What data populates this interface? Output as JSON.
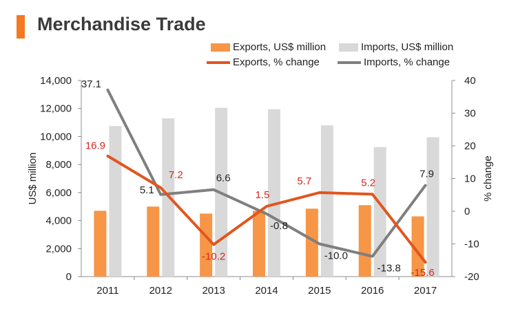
{
  "title": "Merchandise Trade",
  "colors": {
    "accent": "#f47920",
    "exports_bar": "#f79646",
    "imports_bar": "#d9d9d9",
    "exports_line": "#e2551e",
    "imports_line": "#7f7f7f",
    "exports_label": "#d9261c",
    "imports_label": "#222222"
  },
  "legend": {
    "exports_bar": "Exports, US$ million",
    "imports_bar": "Imports, US$ million",
    "exports_line": "Exports, % change",
    "imports_line": "Imports, % change"
  },
  "chart_data": {
    "type": "bar",
    "categories": [
      "2011",
      "2012",
      "2013",
      "2014",
      "2015",
      "2016",
      "2017"
    ],
    "series": [
      {
        "name": "Exports, US$ million",
        "type": "bar",
        "axis": "left",
        "values": [
          4700,
          5000,
          4500,
          4700,
          4850,
          5100,
          4300
        ]
      },
      {
        "name": "Imports, US$ million",
        "type": "bar",
        "axis": "left",
        "values": [
          10750,
          11300,
          12050,
          11950,
          10800,
          9250,
          9950
        ]
      },
      {
        "name": "Exports, % change",
        "type": "line",
        "axis": "right",
        "values": [
          16.9,
          7.2,
          -10.2,
          1.5,
          5.7,
          5.2,
          -15.6
        ],
        "labels": [
          "16.9",
          "7.2",
          "-10.2",
          "1.5",
          "5.7",
          "5.2",
          "-15.6"
        ]
      },
      {
        "name": "Imports, % change",
        "type": "line",
        "axis": "right",
        "values": [
          37.1,
          5.1,
          6.6,
          -0.8,
          -10.0,
          -13.8,
          7.9
        ],
        "labels": [
          "37.1",
          "5.1",
          "6.6",
          "-0.8",
          "-10.0",
          "-13.8",
          "7.9"
        ]
      }
    ],
    "ylabel": "US$ million",
    "ylabel_right": "% change",
    "ylim": [
      0,
      14000
    ],
    "ylim_right": [
      -20,
      40
    ],
    "yticks": [
      "0",
      "2,000",
      "4,000",
      "6,000",
      "8,000",
      "10,000",
      "12,000",
      "14,000"
    ],
    "yticks_right": [
      "-20",
      "-10",
      "0",
      "10",
      "20",
      "30",
      "40"
    ],
    "grid": false,
    "legend_position": "top-right"
  }
}
